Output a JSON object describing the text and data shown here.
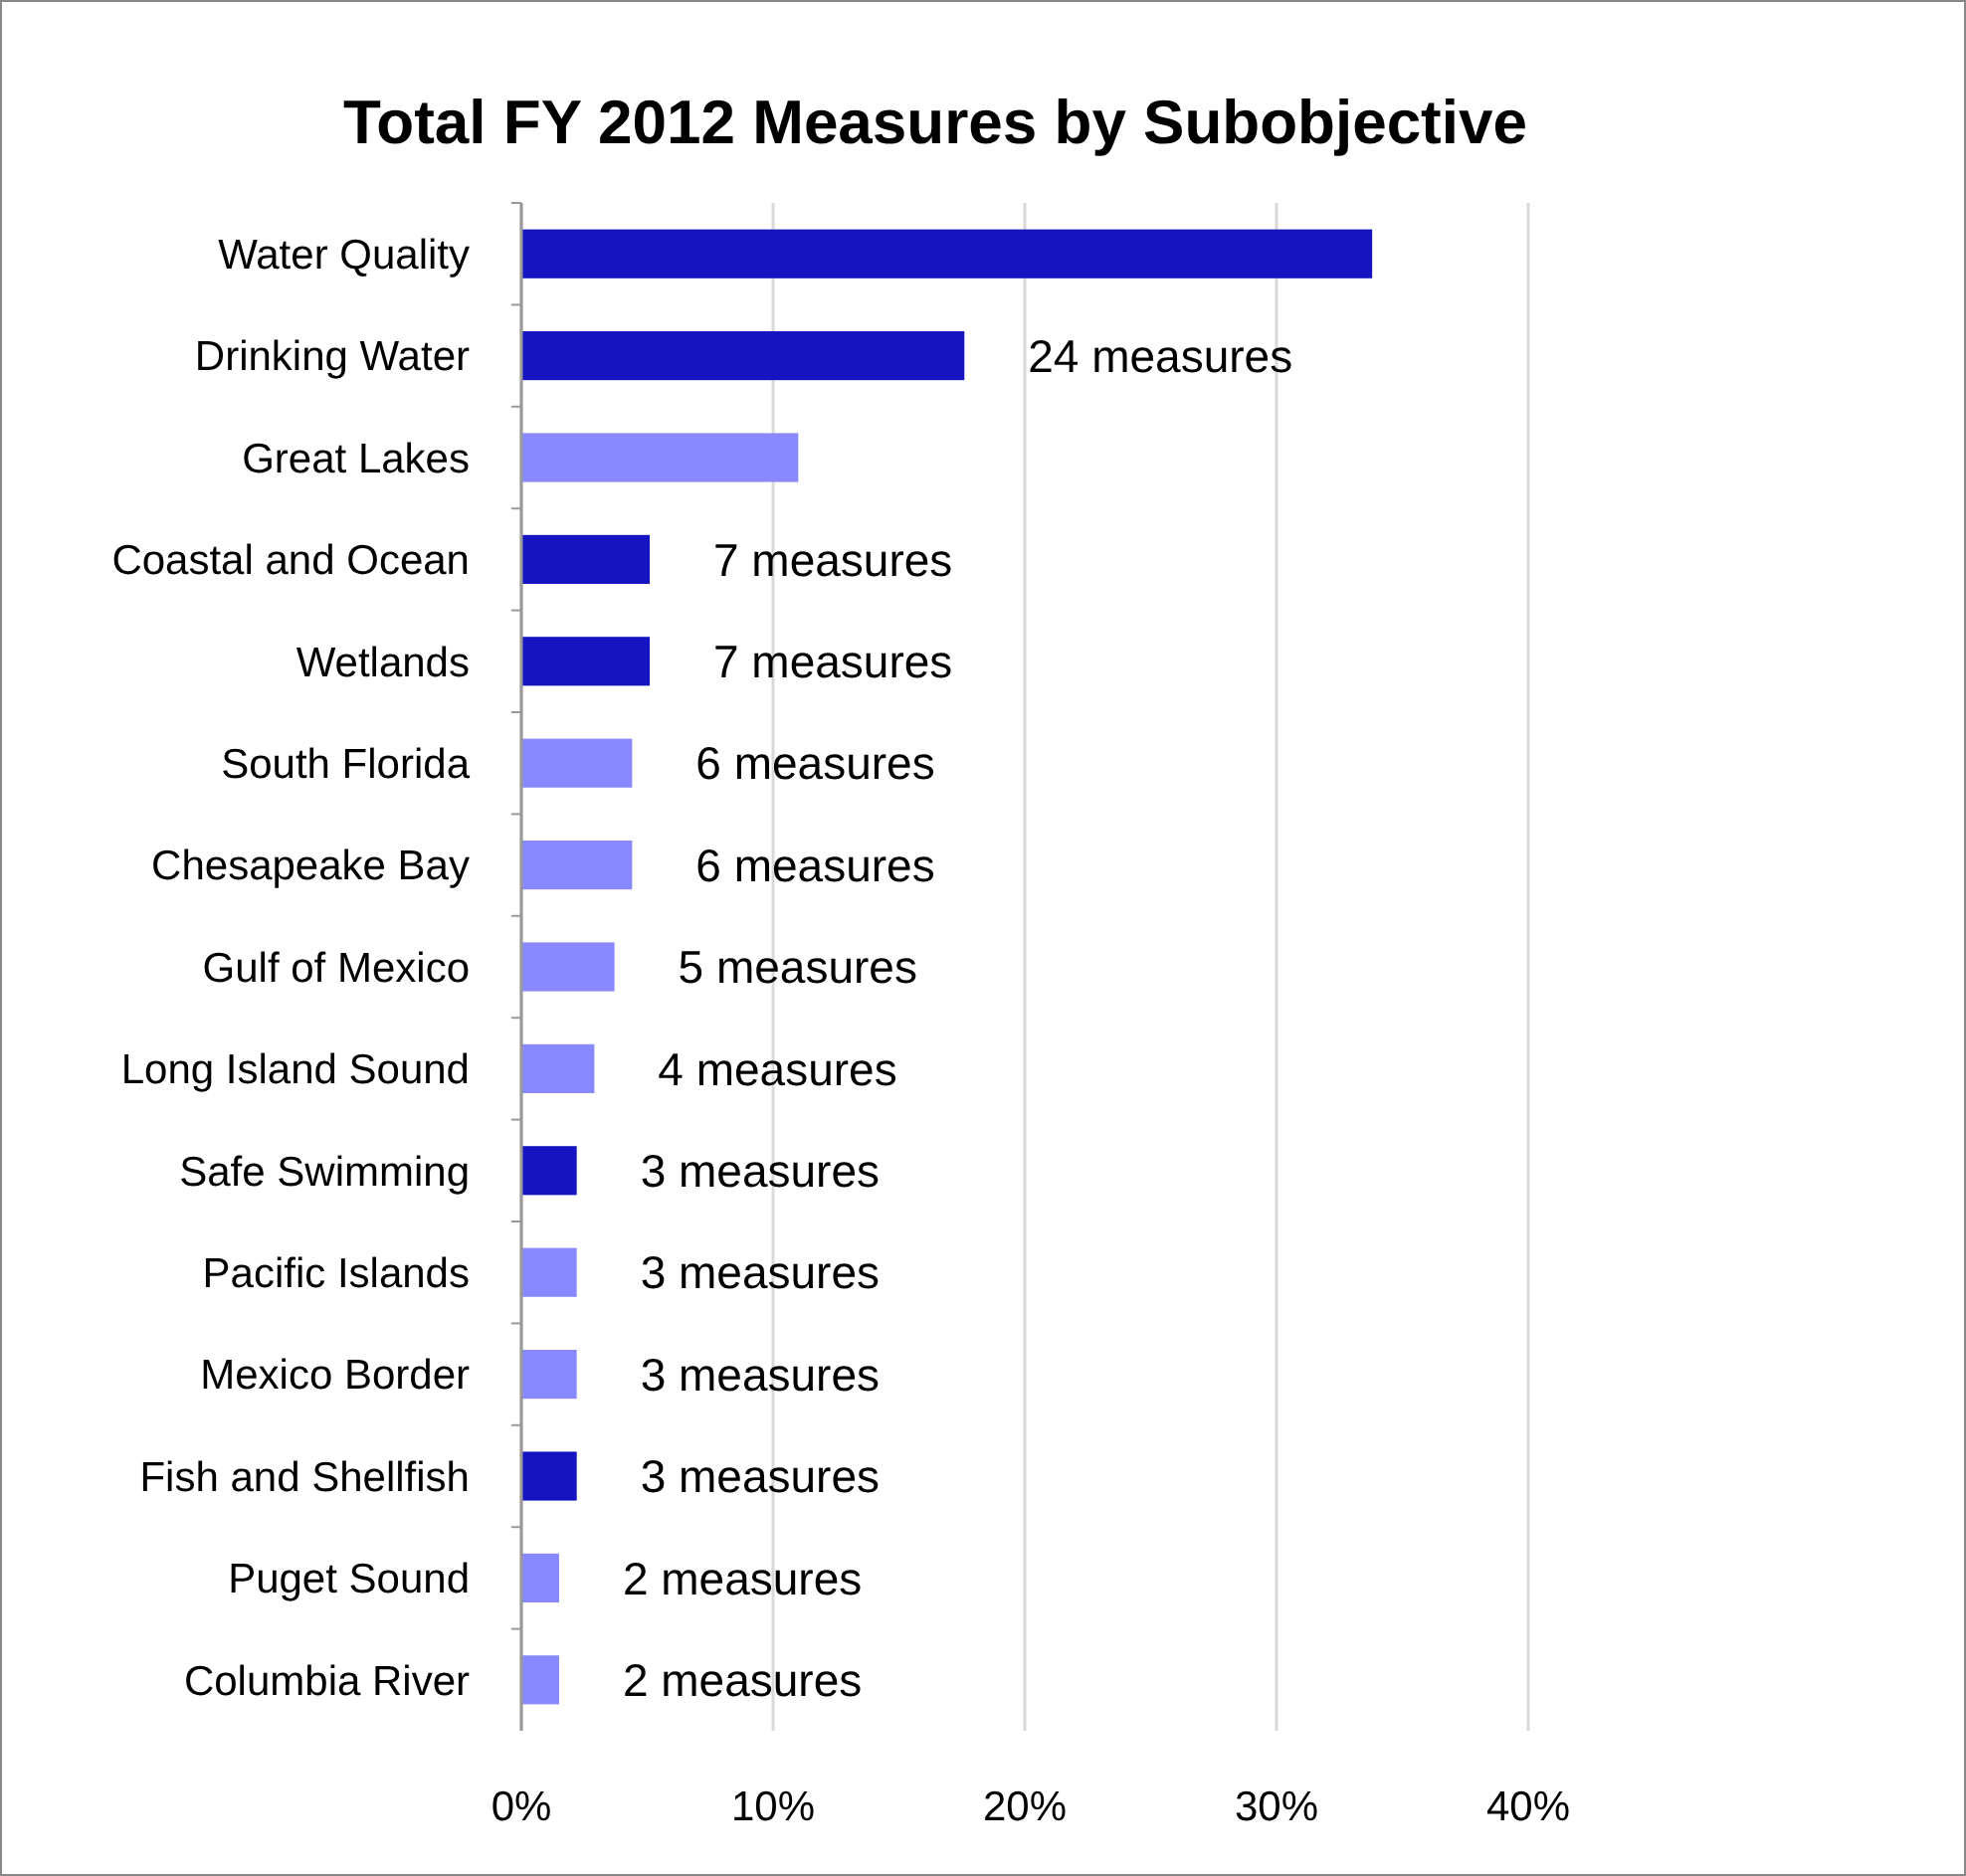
{
  "chart_data": {
    "type": "bar",
    "orientation": "horizontal",
    "title": "Total FY 2012 Measures by Subobjective",
    "categories": [
      "Water Quality",
      "Drinking Water",
      "Great Lakes",
      "Coastal and Ocean",
      "Wetlands",
      "South Florida",
      "Chesapeake Bay",
      "Gulf of Mexico",
      "Long Island Sound",
      "Safe Swimming",
      "Pacific Islands",
      "Mexico Border",
      "Fish and Shellfish",
      "Puget Sound",
      "Columbia River"
    ],
    "values": [
      33.8,
      17.6,
      11.0,
      5.1,
      5.1,
      4.4,
      4.4,
      3.7,
      2.9,
      2.2,
      2.2,
      2.2,
      2.2,
      1.5,
      1.5
    ],
    "colors": [
      "#1414c0",
      "#1414c0",
      "#8888ff",
      "#1414c0",
      "#1414c0",
      "#8888ff",
      "#8888ff",
      "#8888ff",
      "#8888ff",
      "#1414c0",
      "#8888ff",
      "#8888ff",
      "#1414c0",
      "#8888ff",
      "#8888ff"
    ],
    "annotations": [
      {
        "text": "24 measures",
        "x": 17.6,
        "y": "Drinking Water"
      },
      {
        "text": "7 measures",
        "x": 5.1,
        "y": "Coastal and Ocean"
      },
      {
        "text": "7 measures",
        "x": 5.1,
        "y": "Wetlands"
      },
      {
        "text": "6 measures",
        "x": 4.4,
        "y": "South Florida"
      },
      {
        "text": "6 measures",
        "x": 4.4,
        "y": "Chesapeake Bay"
      },
      {
        "text": "5 measures",
        "x": 3.7,
        "y": "Gulf of Mexico"
      },
      {
        "text": "4 measures",
        "x": 2.9,
        "y": "Long Island Sound"
      },
      {
        "text": "3 measures",
        "x": 2.2,
        "y": "Safe Swimming"
      },
      {
        "text": "3 measures",
        "x": 2.2,
        "y": "Pacific Islands"
      },
      {
        "text": "3 measures",
        "x": 2.2,
        "y": "Mexico Border"
      },
      {
        "text": "3 measures",
        "x": 2.2,
        "y": "Fish and Shellfish"
      },
      {
        "text": "2 measures",
        "x": 1.5,
        "y": "Puget Sound"
      },
      {
        "text": "2 measures",
        "x": 1.5,
        "y": "Columbia River"
      }
    ],
    "xlim": [
      0,
      40
    ],
    "xticks": [
      {
        "value": 0,
        "label": "0%"
      },
      {
        "value": 10,
        "label": "10%"
      },
      {
        "value": 20,
        "label": "20%"
      },
      {
        "value": 30,
        "label": "30%"
      },
      {
        "value": 40,
        "label": "40%"
      }
    ],
    "grid": "x"
  }
}
